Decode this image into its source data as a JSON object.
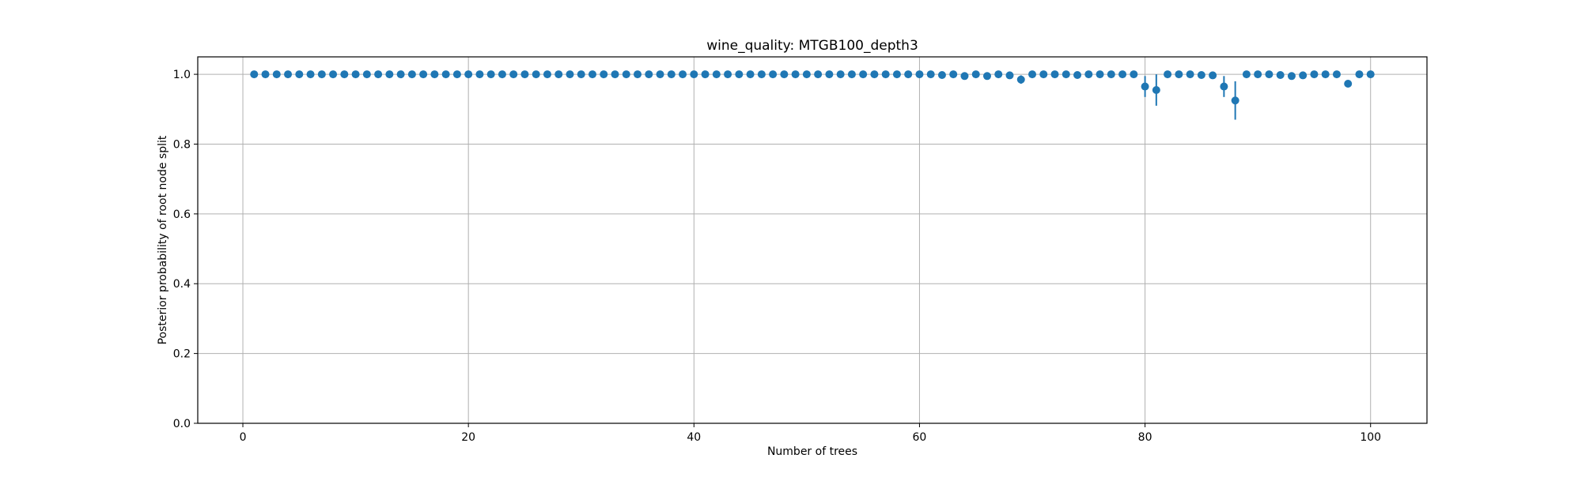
{
  "chart_data": {
    "type": "scatter",
    "title": "wine_quality: MTGB100_depth3",
    "xlabel": "Number of trees",
    "ylabel": "Posterior probability of root node split",
    "xlim": [
      -4,
      105
    ],
    "ylim": [
      0,
      1.05
    ],
    "x_ticks": [
      0,
      20,
      40,
      60,
      80,
      100
    ],
    "y_ticks": [
      0.0,
      0.2,
      0.4,
      0.6,
      0.8,
      1.0
    ],
    "x_tick_labels": [
      "0",
      "20",
      "40",
      "60",
      "80",
      "100"
    ],
    "y_tick_labels": [
      "0.0",
      "0.2",
      "0.4",
      "0.6",
      "0.8",
      "1.0"
    ],
    "grid": true,
    "legend": "none",
    "color": "#1f77b4",
    "series": [
      {
        "x": [
          1,
          2,
          3,
          4,
          5,
          6,
          7,
          8,
          9,
          10,
          11,
          12,
          13,
          14,
          15,
          16,
          17,
          18,
          19,
          20,
          21,
          22,
          23,
          24,
          25,
          26,
          27,
          28,
          29,
          30,
          31,
          32,
          33,
          34,
          35,
          36,
          37,
          38,
          39,
          40,
          41,
          42,
          43,
          44,
          45,
          46,
          47,
          48,
          49,
          50,
          51,
          52,
          53,
          54,
          55,
          56,
          57,
          58,
          59,
          60,
          61,
          62,
          63,
          64,
          65,
          66,
          67,
          68,
          69,
          70,
          71,
          72,
          73,
          74,
          75,
          76,
          77,
          78,
          79,
          80,
          81,
          82,
          83,
          84,
          85,
          86,
          87,
          88,
          89,
          90,
          91,
          92,
          93,
          94,
          95,
          96,
          97,
          98,
          99,
          100
        ],
        "y": [
          1.0,
          1.0,
          1.0,
          1.0,
          1.0,
          1.0,
          1.0,
          1.0,
          1.0,
          1.0,
          1.0,
          1.0,
          1.0,
          1.0,
          1.0,
          1.0,
          1.0,
          1.0,
          1.0,
          1.0,
          1.0,
          1.0,
          1.0,
          1.0,
          1.0,
          1.0,
          1.0,
          1.0,
          1.0,
          1.0,
          1.0,
          1.0,
          1.0,
          1.0,
          1.0,
          1.0,
          1.0,
          1.0,
          1.0,
          1.0,
          1.0,
          1.0,
          1.0,
          1.0,
          1.0,
          1.0,
          1.0,
          1.0,
          1.0,
          1.0,
          1.0,
          1.0,
          1.0,
          1.0,
          1.0,
          1.0,
          1.0,
          1.0,
          1.0,
          1.0,
          1.0,
          0.998,
          1.0,
          0.995,
          1.0,
          0.995,
          1.0,
          0.997,
          0.985,
          1.0,
          1.0,
          1.0,
          1.0,
          0.998,
          1.0,
          1.0,
          1.0,
          1.0,
          1.0,
          0.965,
          0.955,
          1.0,
          1.0,
          1.0,
          0.998,
          0.997,
          0.965,
          0.925,
          1.0,
          1.0,
          1.0,
          0.998,
          0.995,
          0.997,
          1.0,
          1.0,
          1.0,
          0.973,
          1.0,
          1.0
        ],
        "err": [
          0,
          0,
          0,
          0,
          0,
          0,
          0,
          0,
          0,
          0,
          0,
          0,
          0,
          0,
          0,
          0,
          0,
          0,
          0,
          0,
          0,
          0,
          0,
          0,
          0,
          0,
          0,
          0,
          0,
          0,
          0,
          0,
          0,
          0,
          0,
          0,
          0,
          0,
          0,
          0,
          0,
          0,
          0,
          0,
          0,
          0,
          0,
          0,
          0,
          0,
          0,
          0,
          0,
          0,
          0,
          0,
          0,
          0,
          0,
          0,
          0,
          0.002,
          0,
          0.004,
          0,
          0.004,
          0,
          0.003,
          0.012,
          0,
          0,
          0,
          0,
          0.002,
          0,
          0,
          0,
          0,
          0,
          0.03,
          0.045,
          0,
          0,
          0,
          0.002,
          0.003,
          0.03,
          0.055,
          0,
          0,
          0,
          0.002,
          0.004,
          0.003,
          0,
          0,
          0,
          0.01,
          0,
          0
        ]
      }
    ]
  }
}
